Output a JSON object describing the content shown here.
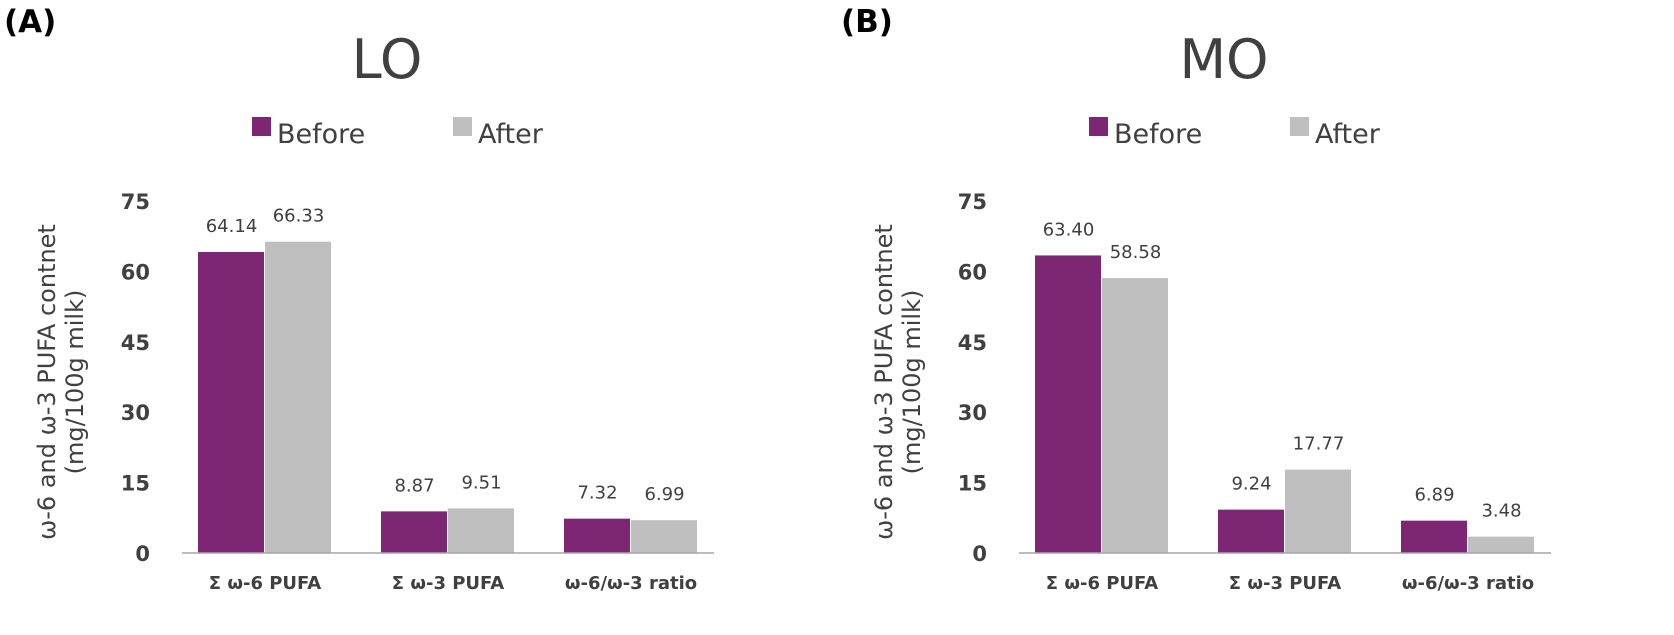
{
  "colors": {
    "before": "#7d2674",
    "after": "#bfbfbf",
    "axis": "#a6a6a6",
    "text": "#404040"
  },
  "chart_data": [
    {
      "panel": "(A)",
      "type": "bar",
      "title": "LO",
      "ylabel_line1": "ω-6 and ω-3 PUFA contnet",
      "ylabel_line2": "(mg/100g milk)",
      "categories": [
        "Σ ω-6 PUFA",
        "Σ ω-3 PUFA",
        "ω-6/ω-3 ratio"
      ],
      "series": [
        {
          "name": "Before",
          "values": [
            64.14,
            8.87,
            7.32
          ],
          "labels": [
            "64.14",
            "8.87",
            "7.32"
          ]
        },
        {
          "name": "After",
          "values": [
            66.33,
            9.51,
            6.99
          ],
          "labels": [
            "66.33",
            "9.51",
            "6.99"
          ]
        }
      ],
      "ylim": [
        0,
        75
      ],
      "yticks": [
        0,
        15,
        30,
        45,
        60,
        75
      ],
      "legend": "top-center",
      "grid": false
    },
    {
      "panel": "(B)",
      "type": "bar",
      "title": "MO",
      "ylabel_line1": "ω-6 and ω-3 PUFA contnet",
      "ylabel_line2": "(mg/100g milk)",
      "categories": [
        "Σ ω-6 PUFA",
        "Σ ω-3 PUFA",
        "ω-6/ω-3 ratio"
      ],
      "series": [
        {
          "name": "Before",
          "values": [
            63.4,
            9.24,
            6.89
          ],
          "labels": [
            "63.40",
            "9.24",
            "6.89"
          ]
        },
        {
          "name": "After",
          "values": [
            58.58,
            17.77,
            3.48
          ],
          "labels": [
            "58.58",
            "17.77",
            "3.48"
          ]
        }
      ],
      "ylim": [
        0,
        75
      ],
      "yticks": [
        0,
        15,
        30,
        45,
        60,
        75
      ],
      "legend": "top-center",
      "grid": false
    }
  ]
}
